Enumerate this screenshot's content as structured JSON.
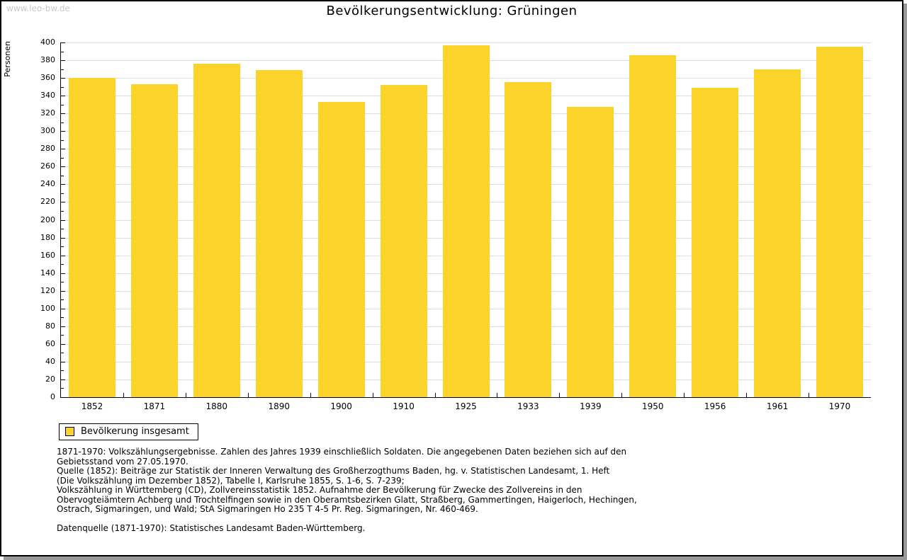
{
  "page": {
    "watermark": "www.leo-bw.de",
    "title": "Bevölkerungsentwicklung: Grüningen"
  },
  "chart_data": {
    "type": "bar",
    "title": "Bevölkerungsentwicklung: Grüningen",
    "xlabel": "",
    "ylabel": "Personen",
    "categories": [
      "1852",
      "1871",
      "1880",
      "1890",
      "1900",
      "1910",
      "1925",
      "1933",
      "1939",
      "1950",
      "1956",
      "1961",
      "1970"
    ],
    "series": [
      {
        "name": "Bevölkerung insgesamt",
        "values": [
          360,
          353,
          376,
          369,
          333,
          352,
          397,
          355,
          327,
          386,
          349,
          370,
          395
        ]
      }
    ],
    "ylim": [
      0,
      400
    ],
    "ytick_step": 20,
    "ytick_minor": 10,
    "grid": true,
    "legend_position": "bottom-left",
    "bar_color": "#fcd32b"
  },
  "legend": {
    "label": "Bevölkerung insgesamt",
    "swatch_color": "#fcd32b"
  },
  "footnotes": {
    "lines": [
      "1871-1970: Volkszählungsergebnisse. Zahlen des Jahres 1939 einschließlich Soldaten. Die angegebenen Daten beziehen sich auf den",
      "Gebietsstand vom 27.05.1970.",
      "Quelle (1852): Beiträge zur Statistik der Inneren Verwaltung des Großherzogthums Baden, hg. v. Statistischen Landesamt, 1. Heft",
      "(Die Volkszählung im Dezember 1852), Tabelle I, Karlsruhe 1855, S. 1-6, S. 7-239;",
      "Volkszählung in Württemberg (CD), Zollvereinsstatistik 1852. Aufnahme der Bevölkerung für Zwecke des Zollvereins in den",
      "Obervogteiämtern Achberg und Trochtelfingen sowie in den Oberamtsbezirken Glatt, Straßberg, Gammertingen, Haigerloch, Hechingen,",
      "Ostrach, Sigmaringen, und Wald; StA Sigmaringen Ho 235 T 4-5 Pr. Reg. Sigmaringen, Nr. 460-469."
    ],
    "datasource": "Datenquelle (1871-1970): Statistisches Landesamt Baden-Württemberg."
  },
  "colors": {
    "bar": "#fcd32b",
    "gridline": "#dddddd",
    "axis": "#000000",
    "watermark_text": "#c9c9c9",
    "page_shadow": "#999999"
  }
}
